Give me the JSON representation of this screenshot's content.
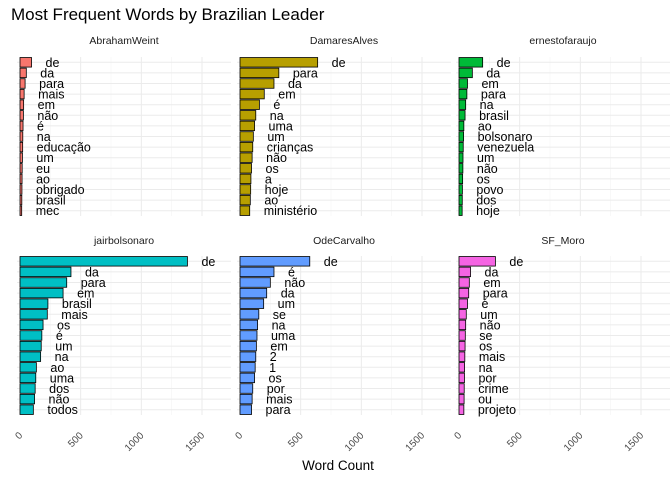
{
  "chart_data": {
    "type": "bar",
    "orientation": "horizontal",
    "title": "Most Frequent Words by Brazilian Leader",
    "xlabel": "Word Count",
    "ylabel": "",
    "xlim": [
      0,
      1500
    ],
    "x_ticks": [
      0,
      500,
      1000,
      1500
    ],
    "grid": true,
    "legend": "none",
    "facets": [
      {
        "name": "AbrahamWeint",
        "color": "#F8766D",
        "bars": [
          {
            "word": "de",
            "value": 95
          },
          {
            "word": "da",
            "value": 52
          },
          {
            "word": "para",
            "value": 42
          },
          {
            "word": "mais",
            "value": 34
          },
          {
            "word": "em",
            "value": 30
          },
          {
            "word": "não",
            "value": 28
          },
          {
            "word": "é",
            "value": 25
          },
          {
            "word": "na",
            "value": 23
          },
          {
            "word": "educação",
            "value": 22
          },
          {
            "word": "um",
            "value": 20
          },
          {
            "word": "eu",
            "value": 18
          },
          {
            "word": "ao",
            "value": 17
          },
          {
            "word": "obrigado",
            "value": 16
          },
          {
            "word": "brasil",
            "value": 15
          },
          {
            "word": "mec",
            "value": 14
          }
        ]
      },
      {
        "name": "DamaresAlves",
        "color": "#B79F00",
        "bars": [
          {
            "word": "de",
            "value": 640
          },
          {
            "word": "para",
            "value": 320
          },
          {
            "word": "da",
            "value": 280
          },
          {
            "word": "em",
            "value": 200
          },
          {
            "word": "é",
            "value": 160
          },
          {
            "word": "na",
            "value": 130
          },
          {
            "word": "uma",
            "value": 120
          },
          {
            "word": "um",
            "value": 110
          },
          {
            "word": "crianças",
            "value": 105
          },
          {
            "word": "não",
            "value": 100
          },
          {
            "word": "os",
            "value": 95
          },
          {
            "word": "a",
            "value": 90
          },
          {
            "word": "hoje",
            "value": 88
          },
          {
            "word": "ao",
            "value": 85
          },
          {
            "word": "ministério",
            "value": 80
          }
        ]
      },
      {
        "name": "ernestofaraujo",
        "color": "#00BA38",
        "bars": [
          {
            "word": "de",
            "value": 195
          },
          {
            "word": "da",
            "value": 110
          },
          {
            "word": "em",
            "value": 70
          },
          {
            "word": "para",
            "value": 65
          },
          {
            "word": "na",
            "value": 55
          },
          {
            "word": "brasil",
            "value": 50
          },
          {
            "word": "ao",
            "value": 40
          },
          {
            "word": "bolsonaro",
            "value": 38
          },
          {
            "word": "venezuela",
            "value": 35
          },
          {
            "word": "um",
            "value": 33
          },
          {
            "word": "não",
            "value": 32
          },
          {
            "word": "os",
            "value": 30
          },
          {
            "word": "povo",
            "value": 28
          },
          {
            "word": "dos",
            "value": 27
          },
          {
            "word": "hoje",
            "value": 26
          }
        ]
      },
      {
        "name": "jairbolsonaro",
        "color": "#00BFC4",
        "bars": [
          {
            "word": "de",
            "value": 1380
          },
          {
            "word": "da",
            "value": 420
          },
          {
            "word": "para",
            "value": 385
          },
          {
            "word": "em",
            "value": 355
          },
          {
            "word": "brasil",
            "value": 230
          },
          {
            "word": "mais",
            "value": 225
          },
          {
            "word": "os",
            "value": 190
          },
          {
            "word": "é",
            "value": 180
          },
          {
            "word": "um",
            "value": 175
          },
          {
            "word": "na",
            "value": 170
          },
          {
            "word": "ao",
            "value": 135
          },
          {
            "word": "uma",
            "value": 130
          },
          {
            "word": "dos",
            "value": 125
          },
          {
            "word": "não",
            "value": 120
          },
          {
            "word": "todos",
            "value": 110
          }
        ]
      },
      {
        "name": "OdeCarvalho",
        "color": "#619CFF",
        "bars": [
          {
            "word": "de",
            "value": 575
          },
          {
            "word": "é",
            "value": 280
          },
          {
            "word": "não",
            "value": 250
          },
          {
            "word": "da",
            "value": 220
          },
          {
            "word": "um",
            "value": 195
          },
          {
            "word": "se",
            "value": 155
          },
          {
            "word": "na",
            "value": 145
          },
          {
            "word": "uma",
            "value": 140
          },
          {
            "word": "em",
            "value": 135
          },
          {
            "word": "2",
            "value": 130
          },
          {
            "word": "1",
            "value": 125
          },
          {
            "word": "os",
            "value": 120
          },
          {
            "word": "por",
            "value": 105
          },
          {
            "word": "mais",
            "value": 100
          },
          {
            "word": "para",
            "value": 95
          }
        ]
      },
      {
        "name": "SF_Moro",
        "color": "#F564E3",
        "bars": [
          {
            "word": "de",
            "value": 300
          },
          {
            "word": "da",
            "value": 95
          },
          {
            "word": "em",
            "value": 85
          },
          {
            "word": "para",
            "value": 80
          },
          {
            "word": "é",
            "value": 70
          },
          {
            "word": "um",
            "value": 60
          },
          {
            "word": "não",
            "value": 55
          },
          {
            "word": "se",
            "value": 52
          },
          {
            "word": "os",
            "value": 50
          },
          {
            "word": "mais",
            "value": 48
          },
          {
            "word": "na",
            "value": 46
          },
          {
            "word": "por",
            "value": 45
          },
          {
            "word": "crime",
            "value": 43
          },
          {
            "word": "ou",
            "value": 42
          },
          {
            "word": "projeto",
            "value": 40
          }
        ]
      }
    ]
  }
}
